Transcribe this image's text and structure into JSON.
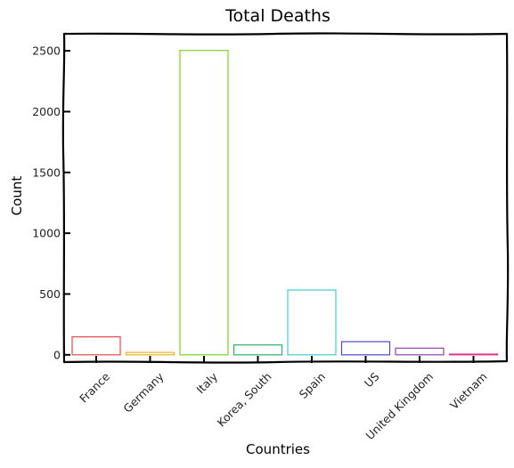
{
  "chart_data": {
    "type": "bar",
    "title": "Total Deaths",
    "xlabel": "Countries",
    "ylabel": "Count",
    "ylim": [
      -60,
      2640
    ],
    "yticks": [
      0,
      500,
      1000,
      1500,
      2000,
      2500
    ],
    "categories": [
      "France",
      "Germany",
      "Italy",
      "Korea, South",
      "Spain",
      "US",
      "United Kingdom",
      "Vietnam"
    ],
    "values": [
      148,
      20,
      2503,
      81,
      533,
      108,
      55,
      0
    ],
    "bar_colors": [
      "#e24a4a",
      "#e8b420",
      "#7ed321",
      "#28b463",
      "#3ecfd6",
      "#4a4ad6",
      "#8e44ad",
      "#e0338a"
    ],
    "grid": false,
    "legend": "none"
  }
}
